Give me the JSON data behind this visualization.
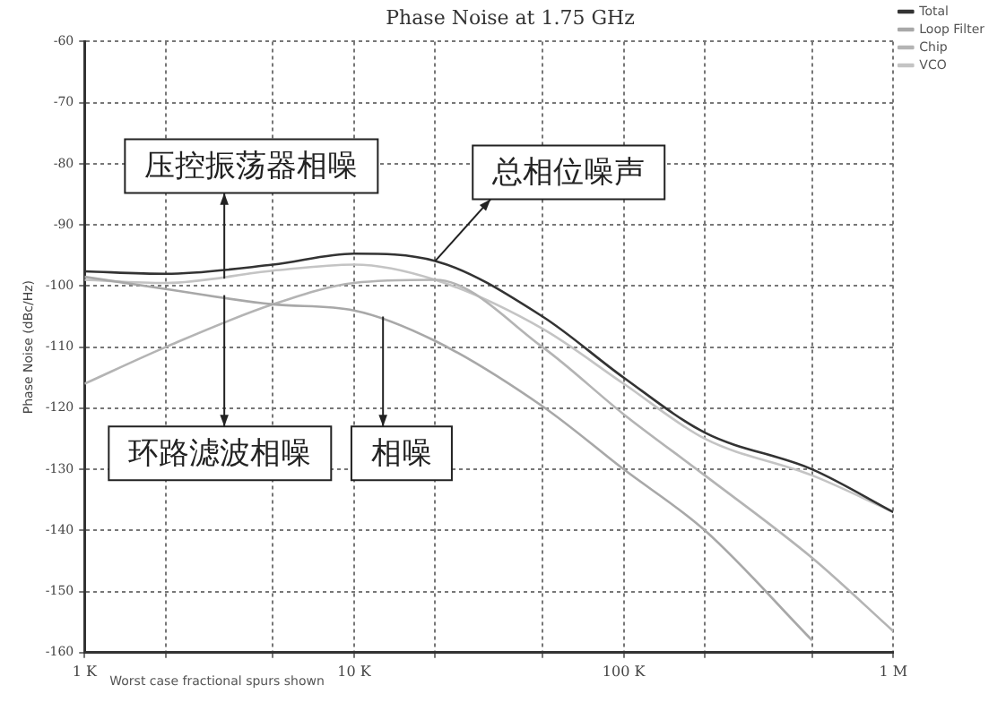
{
  "chart_data": {
    "type": "line",
    "title": "Phase Noise at 1.75 GHz",
    "ylabel": "Phase Noise (dBc/Hz)",
    "x": [
      1000,
      2000,
      5000,
      10000,
      20000,
      50000,
      100000,
      200000,
      500000,
      1000000
    ],
    "series": [
      {
        "name": "Total",
        "color": "#333333",
        "values": [
          -97.6,
          -98,
          -96.5,
          -94.7,
          -95.9,
          -105,
          -115,
          -124,
          -130,
          -137
        ]
      },
      {
        "name": "Loop Filter",
        "color": "#a8a8a8",
        "values": [
          -98.5,
          -100.5,
          -103,
          -104,
          -109,
          -119.7,
          -130,
          -140,
          -158,
          null
        ]
      },
      {
        "name": "Chip",
        "color": "#b4b4b4",
        "values": [
          -116,
          -110,
          -103,
          -99.5,
          -99,
          -110,
          -121,
          -131,
          -144.5,
          -156.5
        ]
      },
      {
        "name": "VCO",
        "color": "#c4c4c4",
        "values": [
          -99,
          -99.5,
          -97.5,
          -96.5,
          -99,
          -107,
          -116,
          -125,
          -131,
          -137
        ]
      }
    ],
    "xlim": [
      1000,
      1000000
    ],
    "ylim": [
      -160,
      -60
    ],
    "xticks": [
      {
        "value": 1000,
        "label": "1 K"
      },
      {
        "value": 2000,
        "label": null
      },
      {
        "value": 5000,
        "label": null
      },
      {
        "value": 10000,
        "label": "10 K"
      },
      {
        "value": 20000,
        "label": null
      },
      {
        "value": 50000,
        "label": null
      },
      {
        "value": 100000,
        "label": "100 K"
      },
      {
        "value": 200000,
        "label": null
      },
      {
        "value": 500000,
        "label": null
      },
      {
        "value": 1000000,
        "label": "1 M"
      }
    ],
    "yticks": [
      -160,
      -150,
      -140,
      -130,
      -120,
      -110,
      -100,
      -90,
      -80,
      -70,
      -60
    ],
    "log": "x",
    "grid": true,
    "legend": "top right",
    "marker": "none",
    "line_style": "solid",
    "annotations": [
      {
        "text": "压控振荡器相噪",
        "x": 3300,
        "y": -98.8
      },
      {
        "text": "总相位噪声",
        "x": 20000,
        "y": -95.9
      },
      {
        "text": "环路滤波相噪",
        "x": 3300,
        "y": -101.5
      },
      {
        "text": "相噪",
        "x": 12800,
        "y": -105
      },
      "Worst case fractional spurs shown"
    ]
  }
}
